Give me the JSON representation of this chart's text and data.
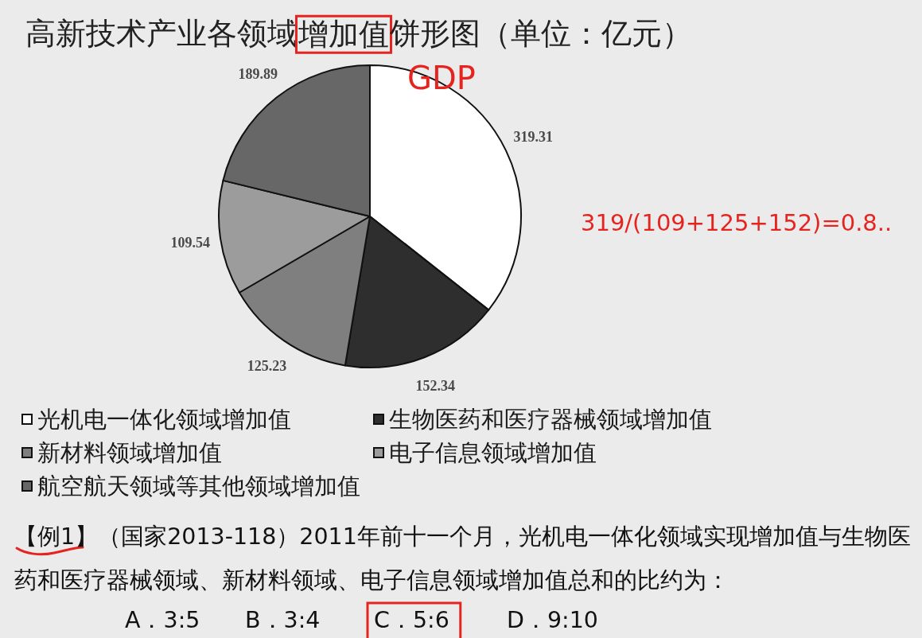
{
  "chart_data": {
    "type": "pie",
    "title": "高新技术产业各领域增加值饼形图（单位：亿元）",
    "categories": [
      "光机电一体化领域增加值",
      "生物医药和医疗器械领域增加值",
      "新材料领域增加值",
      "电子信息领域增加值",
      "航空航天领域等其他领域增加值"
    ],
    "values": [
      319.31,
      152.34,
      125.23,
      109.54,
      189.89
    ],
    "colors": [
      "#ffffff",
      "#2e2e2e",
      "#7f7f7f",
      "#9c9c9c",
      "#676767"
    ],
    "data_labels": true,
    "legend": "bottom",
    "annotations": [
      "GDP",
      "319/(109+125+152)=0.8..",
      "【例1】（国家2013-118）2011年前十一个月，光机电一体化领域实现增加值与生物医药和医疗器械领域、新材料领域、电子信息领域增加值总和的比约为：",
      "A．3:5",
      "B．3:4",
      "C．5:6",
      "D．9:10"
    ]
  }
}
